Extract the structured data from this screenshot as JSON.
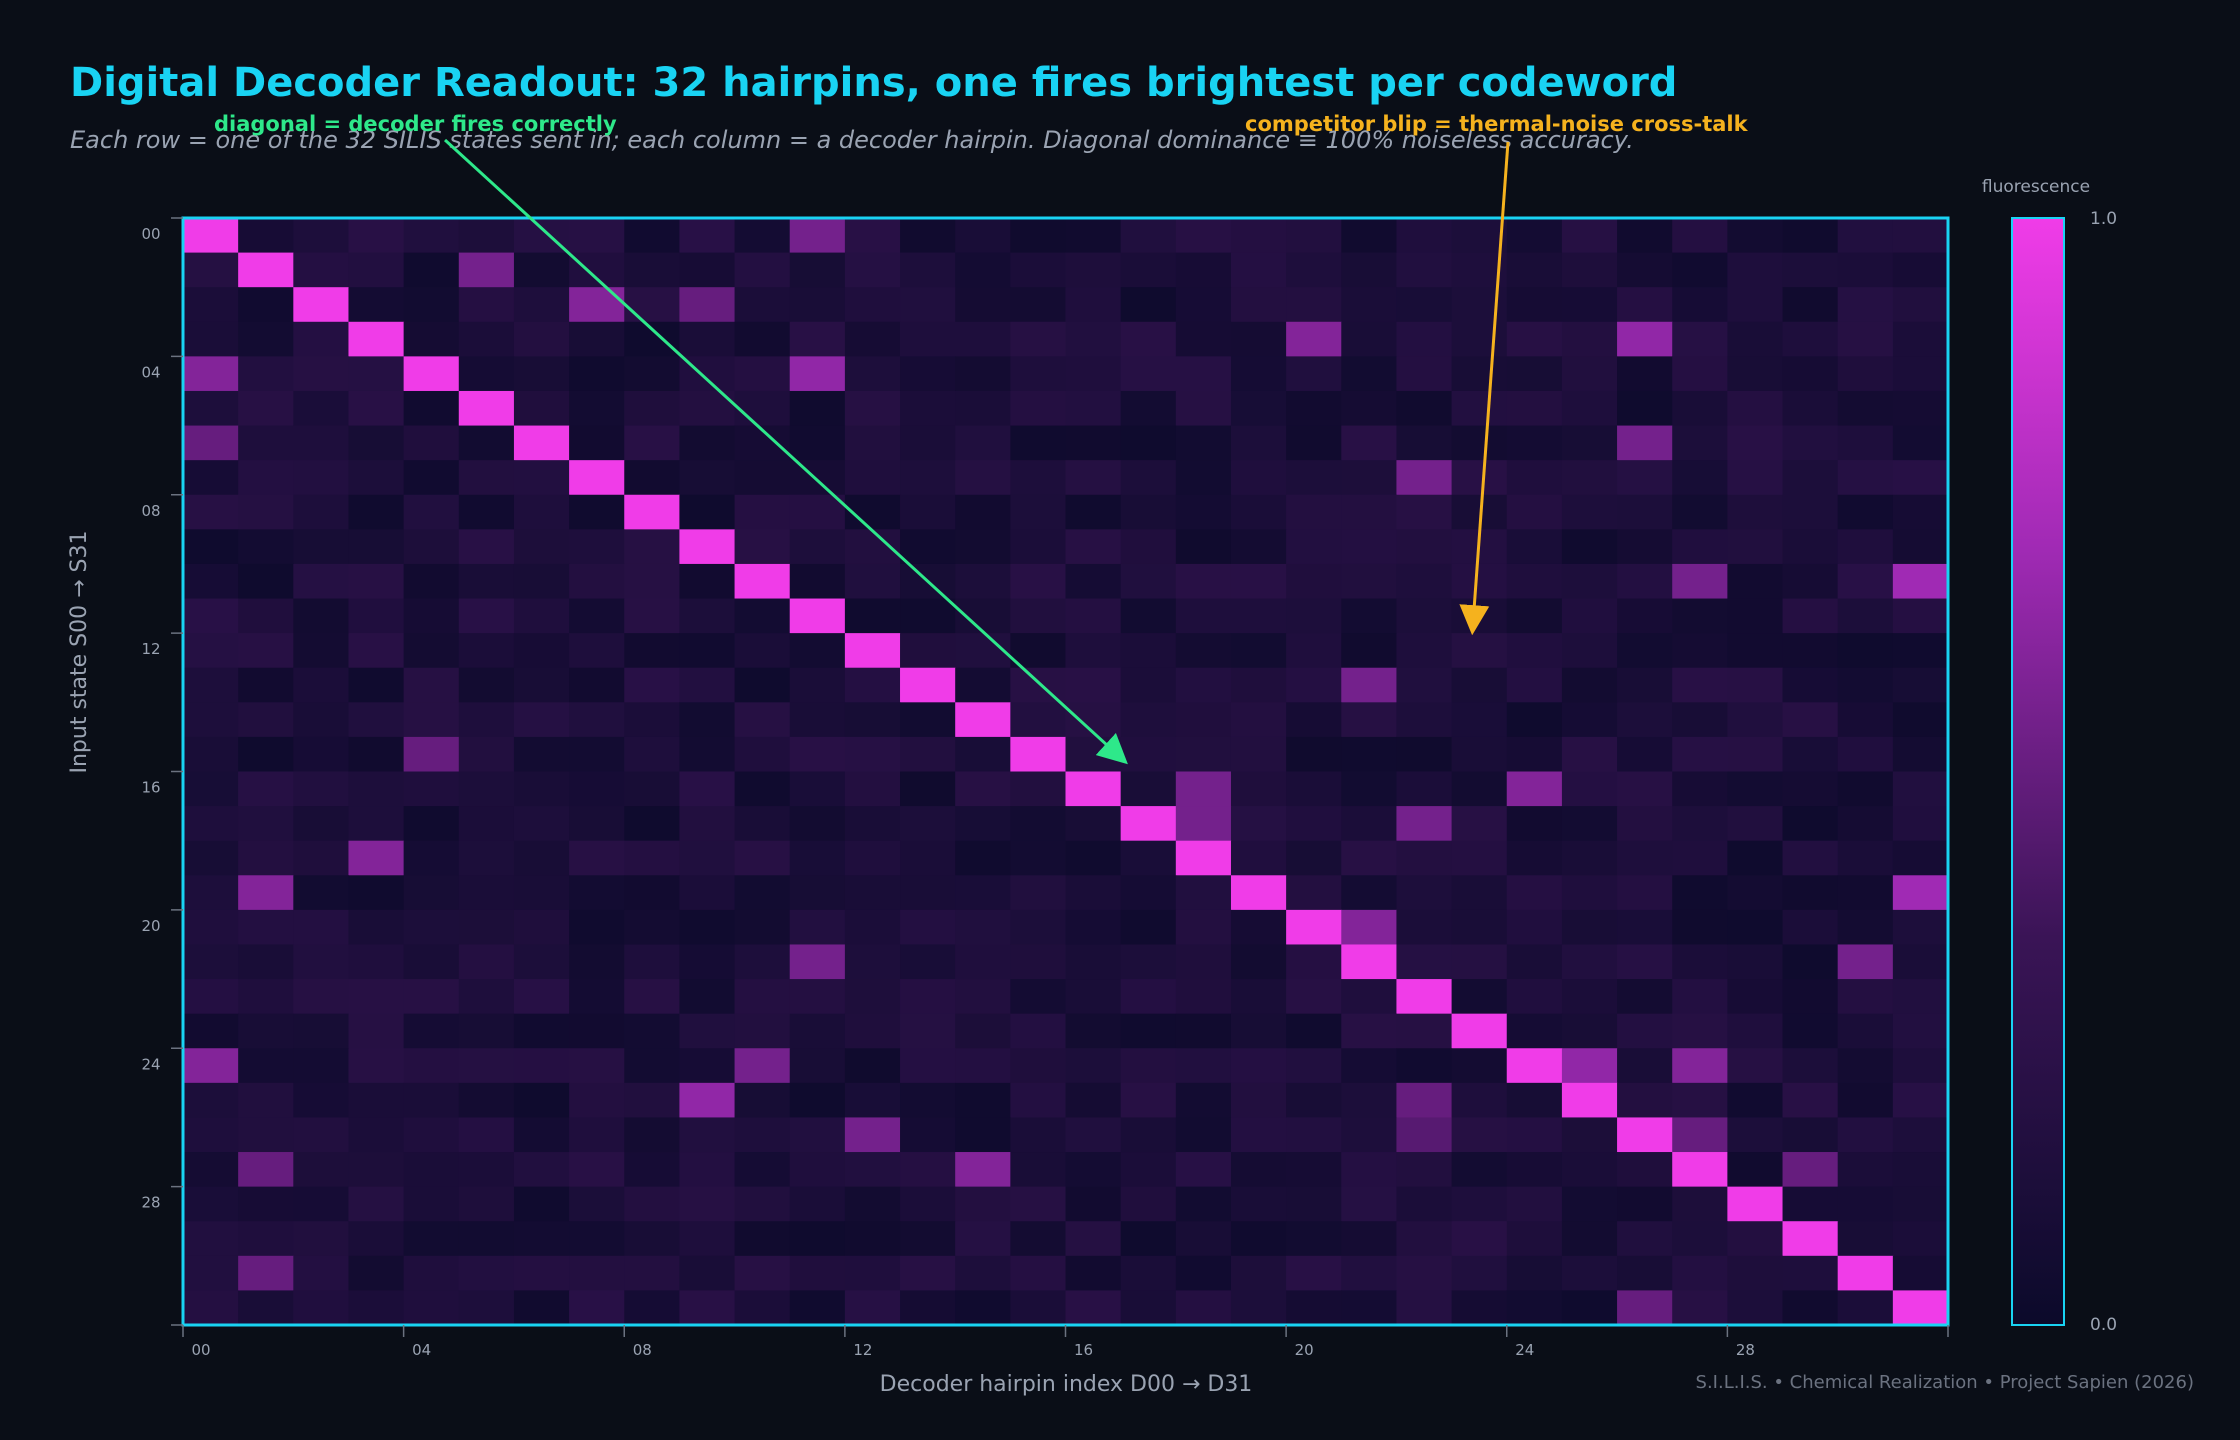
{
  "title": "Digital Decoder Readout: 32 hairpins, one fires brightest per codeword",
  "subtitle": "Each row = one of the 32 SILIS states sent in; each column = a decoder hairpin. Diagonal dominance ≡ 100% noiseless accuracy.",
  "footer": "S.I.L.I.S. • Chemical Realization • Project Sapien (2026)",
  "colors": {
    "background": "#0a0e17",
    "title": "#19d3f3",
    "frame": "#19d3f3",
    "colormap_low": "#0b0a2a",
    "colormap_high": "#f03ce8",
    "annotation_diagonal": "#2ee88a",
    "annotation_crosstalk": "#f5b21e",
    "axis_text": "#9aa3b2"
  },
  "chart_data": {
    "type": "heatmap",
    "xlabel": "Decoder hairpin index D00 → D31",
    "ylabel": "Input state S00 → S31",
    "x_ticks": [
      "00",
      "04",
      "08",
      "12",
      "16",
      "20",
      "24",
      "28"
    ],
    "y_ticks": [
      "00",
      "04",
      "08",
      "12",
      "16",
      "20",
      "24",
      "28"
    ],
    "rows": 32,
    "cols": 32,
    "colorbar": {
      "label": "fluorescence",
      "min_label": "0.0",
      "max_label": "1.0",
      "range": [
        0.0,
        1.0
      ]
    },
    "diagonal_value": 1.0,
    "background_range": [
      0.03,
      0.22
    ],
    "crosstalk": [
      {
        "row": 0,
        "col": 11,
        "value": 0.55
      },
      {
        "row": 1,
        "col": 5,
        "value": 0.55
      },
      {
        "row": 2,
        "col": 7,
        "value": 0.6
      },
      {
        "row": 2,
        "col": 9,
        "value": 0.5
      },
      {
        "row": 3,
        "col": 20,
        "value": 0.6
      },
      {
        "row": 3,
        "col": 26,
        "value": 0.65
      },
      {
        "row": 4,
        "col": 0,
        "value": 0.6
      },
      {
        "row": 4,
        "col": 11,
        "value": 0.65
      },
      {
        "row": 6,
        "col": 0,
        "value": 0.5
      },
      {
        "row": 6,
        "col": 26,
        "value": 0.55
      },
      {
        "row": 7,
        "col": 22,
        "value": 0.55
      },
      {
        "row": 10,
        "col": 27,
        "value": 0.55
      },
      {
        "row": 10,
        "col": 31,
        "value": 0.7
      },
      {
        "row": 13,
        "col": 21,
        "value": 0.55
      },
      {
        "row": 15,
        "col": 4,
        "value": 0.5
      },
      {
        "row": 16,
        "col": 18,
        "value": 0.55
      },
      {
        "row": 16,
        "col": 24,
        "value": 0.6
      },
      {
        "row": 17,
        "col": 18,
        "value": 0.55
      },
      {
        "row": 17,
        "col": 22,
        "value": 0.55
      },
      {
        "row": 18,
        "col": 3,
        "value": 0.6
      },
      {
        "row": 19,
        "col": 1,
        "value": 0.6
      },
      {
        "row": 19,
        "col": 31,
        "value": 0.7
      },
      {
        "row": 20,
        "col": 21,
        "value": 0.6
      },
      {
        "row": 21,
        "col": 11,
        "value": 0.55
      },
      {
        "row": 21,
        "col": 30,
        "value": 0.55
      },
      {
        "row": 24,
        "col": 0,
        "value": 0.6
      },
      {
        "row": 24,
        "col": 10,
        "value": 0.55
      },
      {
        "row": 24,
        "col": 25,
        "value": 0.65
      },
      {
        "row": 24,
        "col": 27,
        "value": 0.6
      },
      {
        "row": 25,
        "col": 9,
        "value": 0.65
      },
      {
        "row": 25,
        "col": 22,
        "value": 0.5
      },
      {
        "row": 26,
        "col": 12,
        "value": 0.55
      },
      {
        "row": 26,
        "col": 22,
        "value": 0.45
      },
      {
        "row": 26,
        "col": 27,
        "value": 0.5
      },
      {
        "row": 27,
        "col": 1,
        "value": 0.5
      },
      {
        "row": 27,
        "col": 14,
        "value": 0.6
      },
      {
        "row": 27,
        "col": 29,
        "value": 0.5
      },
      {
        "row": 30,
        "col": 1,
        "value": 0.5
      },
      {
        "row": 31,
        "col": 26,
        "value": 0.5
      }
    ],
    "annotations": [
      {
        "text": "diagonal = decoder fires correctly",
        "points_to": {
          "row": 15.5,
          "col": 16
        }
      },
      {
        "text": "competitor blip = thermal-noise cross-talk",
        "points_to": {
          "row": 11.8,
          "col": 23
        }
      }
    ]
  }
}
